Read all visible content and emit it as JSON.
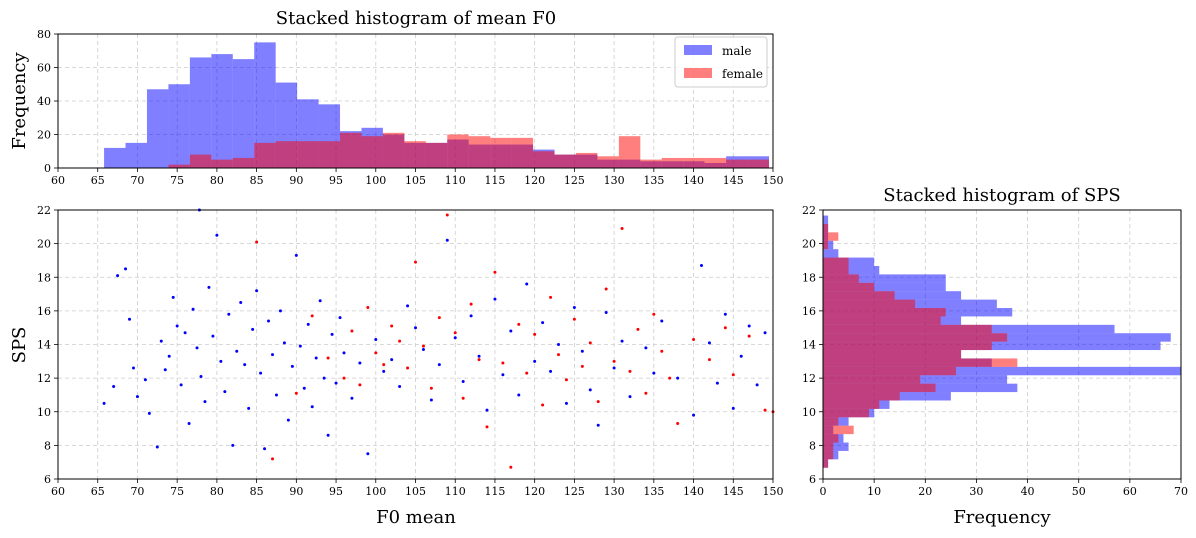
{
  "colors": {
    "male": "#0000ff",
    "female": "#ff0000",
    "grid": "#cccccc"
  },
  "chart_data": [
    {
      "id": "hist_f0",
      "type": "bar",
      "title": "Stacked histogram of mean F0",
      "xlabel": "",
      "ylabel": "Frequency",
      "xlim": [
        60,
        150
      ],
      "ylim": [
        0,
        80
      ],
      "xticks": [
        60,
        65,
        70,
        75,
        80,
        85,
        90,
        95,
        100,
        105,
        110,
        115,
        120,
        125,
        130,
        135,
        140,
        145,
        150
      ],
      "yticks": [
        0,
        20,
        40,
        60,
        80
      ],
      "grid": true,
      "legend": "top-right",
      "alpha": 0.5,
      "bin_edges": [
        65.8,
        68.5,
        71.2,
        73.9,
        76.6,
        79.3,
        82.0,
        84.7,
        87.4,
        90.1,
        92.8,
        95.5,
        98.2,
        100.9,
        103.6,
        106.3,
        109.0,
        111.7,
        114.4,
        117.1,
        119.8,
        122.5,
        125.2,
        127.9,
        130.6,
        133.3,
        136.0,
        138.7,
        141.4,
        144.1,
        146.8,
        149.5
      ],
      "series": [
        {
          "name": "male",
          "values": [
            12,
            15,
            47,
            50,
            66,
            68,
            65,
            75,
            51,
            41,
            38,
            22,
            24,
            20,
            15,
            15,
            17,
            14,
            14,
            14,
            11,
            8,
            8,
            5,
            5,
            4,
            4,
            4,
            3,
            7,
            7
          ]
        },
        {
          "name": "female",
          "values": [
            0,
            0,
            0,
            2,
            8,
            5,
            6,
            15,
            16,
            16,
            16,
            21,
            19,
            21,
            16,
            15,
            20,
            19,
            18,
            18,
            10,
            8,
            9,
            7,
            19,
            5,
            6,
            6,
            6,
            5,
            5
          ]
        }
      ]
    },
    {
      "id": "scatter",
      "type": "scatter",
      "title": "",
      "xlabel": "F0 mean",
      "ylabel": "SPS",
      "xlim": [
        60,
        150
      ],
      "ylim": [
        6,
        22
      ],
      "xticks": [
        60,
        65,
        70,
        75,
        80,
        85,
        90,
        95,
        100,
        105,
        110,
        115,
        120,
        125,
        130,
        135,
        140,
        145,
        150
      ],
      "yticks": [
        6,
        8,
        10,
        12,
        14,
        16,
        18,
        20,
        22
      ],
      "grid": true,
      "series": [
        {
          "name": "male",
          "points": [
            [
              65.8,
              10.5
            ],
            [
              67,
              11.5
            ],
            [
              67.5,
              18.1
            ],
            [
              68.5,
              18.5
            ],
            [
              69,
              15.5
            ],
            [
              69.5,
              12.6
            ],
            [
              70,
              10.9
            ],
            [
              71,
              11.9
            ],
            [
              71.5,
              9.9
            ],
            [
              72.5,
              7.9
            ],
            [
              73,
              14.2
            ],
            [
              73.5,
              12.5
            ],
            [
              74,
              13.3
            ],
            [
              74.5,
              16.8
            ],
            [
              75,
              15.1
            ],
            [
              75.5,
              11.6
            ],
            [
              76,
              14.7
            ],
            [
              76.5,
              9.3
            ],
            [
              77,
              16.1
            ],
            [
              77.5,
              13.8
            ],
            [
              77.8,
              22
            ],
            [
              78,
              12.1
            ],
            [
              78.5,
              10.6
            ],
            [
              79,
              17.4
            ],
            [
              79.5,
              14.5
            ],
            [
              80,
              20.5
            ],
            [
              80.5,
              13.0
            ],
            [
              81,
              11.2
            ],
            [
              81.5,
              15.8
            ],
            [
              82,
              8.0
            ],
            [
              82.5,
              13.6
            ],
            [
              83,
              16.5
            ],
            [
              83.5,
              12.8
            ],
            [
              84,
              10.2
            ],
            [
              84.5,
              14.9
            ],
            [
              85,
              17.2
            ],
            [
              85.5,
              12.3
            ],
            [
              86,
              7.8
            ],
            [
              86.5,
              15.4
            ],
            [
              87,
              13.4
            ],
            [
              87.5,
              11.0
            ],
            [
              88,
              16.0
            ],
            [
              88.5,
              14.1
            ],
            [
              89,
              9.5
            ],
            [
              89.5,
              12.7
            ],
            [
              90,
              19.3
            ],
            [
              90.5,
              13.9
            ],
            [
              91,
              11.4
            ],
            [
              91.5,
              15.2
            ],
            [
              92,
              10.3
            ],
            [
              92.5,
              13.2
            ],
            [
              93,
              16.6
            ],
            [
              93.5,
              12.0
            ],
            [
              94,
              8.6
            ],
            [
              94.5,
              14.6
            ],
            [
              95,
              11.7
            ],
            [
              95.5,
              15.6
            ],
            [
              96,
              13.5
            ],
            [
              97,
              10.8
            ],
            [
              98,
              12.9
            ],
            [
              99,
              7.5
            ],
            [
              100,
              14.3
            ],
            [
              101,
              12.4
            ],
            [
              102,
              13.1
            ],
            [
              103,
              11.5
            ],
            [
              104,
              16.3
            ],
            [
              105,
              15.0
            ],
            [
              106,
              13.7
            ],
            [
              107,
              10.7
            ],
            [
              108,
              12.8
            ],
            [
              109,
              20.2
            ],
            [
              110,
              14.4
            ],
            [
              111,
              11.8
            ],
            [
              112,
              15.7
            ],
            [
              113,
              13.3
            ],
            [
              114,
              10.1
            ],
            [
              115,
              16.7
            ],
            [
              116,
              12.2
            ],
            [
              117,
              14.8
            ],
            [
              118,
              11.0
            ],
            [
              119,
              17.6
            ],
            [
              120,
              13.0
            ],
            [
              121,
              15.3
            ],
            [
              122,
              12.4
            ],
            [
              123,
              14.0
            ],
            [
              124,
              10.5
            ],
            [
              125,
              16.2
            ],
            [
              126,
              13.6
            ],
            [
              127,
              11.3
            ],
            [
              128,
              9.2
            ],
            [
              129,
              15.9
            ],
            [
              130,
              12.6
            ],
            [
              131,
              14.2
            ],
            [
              132,
              10.9
            ],
            [
              134,
              13.8
            ],
            [
              135,
              12.3
            ],
            [
              136,
              15.4
            ],
            [
              138,
              12.0
            ],
            [
              140,
              9.8
            ],
            [
              141,
              18.7
            ],
            [
              142,
              14.1
            ],
            [
              143,
              11.7
            ],
            [
              144,
              15.8
            ],
            [
              145,
              10.2
            ],
            [
              146,
              13.3
            ],
            [
              147,
              15.1
            ],
            [
              148,
              11.6
            ],
            [
              149,
              14.7
            ]
          ]
        },
        {
          "name": "female",
          "points": [
            [
              85,
              20.1
            ],
            [
              87,
              7.2
            ],
            [
              90,
              11.1
            ],
            [
              92,
              15.7
            ],
            [
              94,
              13.2
            ],
            [
              96,
              12.0
            ],
            [
              97,
              14.8
            ],
            [
              98,
              11.6
            ],
            [
              99,
              16.2
            ],
            [
              100,
              13.5
            ],
            [
              101,
              12.8
            ],
            [
              102,
              15.1
            ],
            [
              103,
              14.2
            ],
            [
              104,
              12.6
            ],
            [
              105,
              18.9
            ],
            [
              106,
              13.9
            ],
            [
              107,
              11.4
            ],
            [
              108,
              15.6
            ],
            [
              109,
              21.7
            ],
            [
              110,
              14.7
            ],
            [
              111,
              10.8
            ],
            [
              112,
              16.4
            ],
            [
              113,
              13.1
            ],
            [
              114,
              9.1
            ],
            [
              115,
              18.3
            ],
            [
              116,
              12.9
            ],
            [
              117,
              6.7
            ],
            [
              118,
              15.2
            ],
            [
              119,
              12.3
            ],
            [
              120,
              14.6
            ],
            [
              121,
              10.4
            ],
            [
              122,
              16.8
            ],
            [
              123,
              13.4
            ],
            [
              124,
              11.9
            ],
            [
              125,
              15.5
            ],
            [
              126,
              12.7
            ],
            [
              127,
              14.1
            ],
            [
              128,
              10.6
            ],
            [
              129,
              17.3
            ],
            [
              130,
              13.0
            ],
            [
              131,
              20.9
            ],
            [
              132,
              12.4
            ],
            [
              133,
              14.9
            ],
            [
              134,
              11.1
            ],
            [
              135,
              15.8
            ],
            [
              136,
              13.6
            ],
            [
              137,
              12.0
            ],
            [
              138,
              9.3
            ],
            [
              140,
              14.3
            ],
            [
              142,
              13.1
            ],
            [
              144,
              15.0
            ],
            [
              145,
              12.2
            ],
            [
              147,
              14.5
            ],
            [
              149,
              10.1
            ],
            [
              150,
              10.0
            ]
          ]
        }
      ]
    },
    {
      "id": "hist_sps",
      "type": "bar",
      "orientation": "horizontal",
      "title": "Stacked histogram of SPS",
      "xlabel": "Frequency",
      "ylabel": "",
      "xlim": [
        0,
        70
      ],
      "ylim": [
        6,
        22
      ],
      "xticks": [
        0,
        10,
        20,
        30,
        40,
        50,
        60,
        70
      ],
      "yticks": [
        6,
        8,
        10,
        12,
        14,
        16,
        18,
        20,
        22
      ],
      "grid": true,
      "alpha": 0.5,
      "bin_edges": [
        6.67,
        7.17,
        7.67,
        8.17,
        8.67,
        9.17,
        9.67,
        10.17,
        10.67,
        11.17,
        11.67,
        12.17,
        12.67,
        13.17,
        13.67,
        14.17,
        14.67,
        15.17,
        15.67,
        16.17,
        16.67,
        17.17,
        17.67,
        18.17,
        18.67,
        19.17,
        19.67,
        20.17,
        20.67,
        21.17,
        21.67,
        22.17
      ],
      "series": [
        {
          "name": "male",
          "values": [
            1,
            3,
            5,
            4,
            2,
            5,
            10,
            13,
            25,
            38,
            36,
            70,
            33,
            27,
            66,
            68,
            57,
            27,
            37,
            34,
            27,
            24,
            24,
            11,
            10,
            3,
            2,
            1,
            1,
            1,
            0
          ]
        },
        {
          "name": "female",
          "values": [
            1,
            2,
            2,
            3,
            6,
            3,
            9,
            11,
            15,
            22,
            19,
            26,
            38,
            27,
            33,
            36,
            33,
            23,
            24,
            18,
            14,
            10,
            7,
            5,
            5,
            0,
            1,
            3,
            1,
            0,
            0
          ]
        }
      ]
    }
  ]
}
